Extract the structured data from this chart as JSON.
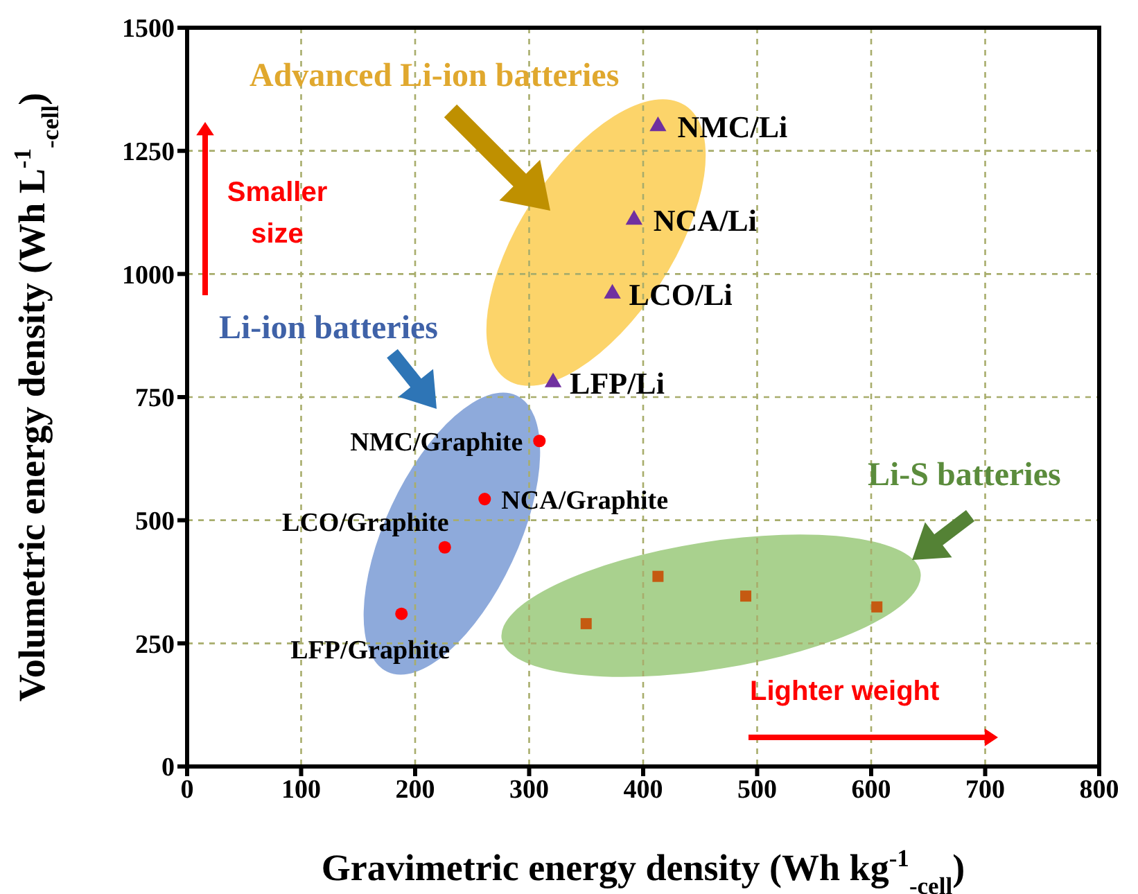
{
  "chart_data": {
    "type": "scatter",
    "xlabel": "Gravimetric energy density (Wh kg$^{-1}$$_{-cell}$)",
    "ylabel": "Volumetric energy density (Wh L$^{-1}$$_{-cell}$)",
    "xlim": [
      0,
      800
    ],
    "xticks": [
      0,
      100,
      200,
      300,
      400,
      500,
      600,
      700,
      800
    ],
    "ylim": [
      0,
      1500
    ],
    "yticks": [
      0,
      250,
      500,
      750,
      1000,
      1250,
      1500
    ],
    "grid": true,
    "legend": false,
    "series": [
      {
        "color": "#ff0000",
        "marker": "circle",
        "x": [
          188,
          226,
          261,
          309
        ],
        "values": [
          310,
          445,
          543,
          661
        ]
      },
      {
        "color": "#7030a0",
        "marker": "triangle",
        "x": [
          321,
          373,
          392,
          413
        ],
        "values": [
          780,
          960,
          1110,
          1300
        ]
      },
      {
        "color": "#c55a11",
        "marker": "square",
        "x": [
          350,
          413,
          490,
          605
        ],
        "values": [
          290,
          386,
          346,
          324
        ]
      }
    ],
    "annotations": [
      "Advanced Li-ion batteries",
      "Li-ion batteries",
      "Li-S batteries",
      "Smaller size",
      "Lighter weight",
      {
        "text": "LFP/Graphite",
        "x": 188,
        "y": 310
      },
      {
        "text": "LCO/Graphite",
        "x": 226,
        "y": 445
      },
      {
        "text": "NCA/Graphite",
        "x": 261,
        "y": 543
      },
      {
        "text": "NMC/Graphite",
        "x": 309,
        "y": 661
      },
      {
        "text": "LFP/Li",
        "x": 321,
        "y": 780
      },
      {
        "text": "LCO/Li",
        "x": 373,
        "y": 960
      },
      {
        "text": "NCA/Li",
        "x": 392,
        "y": 1110
      },
      {
        "text": "NMC/Li",
        "x": 413,
        "y": 1300
      }
    ]
  }
}
